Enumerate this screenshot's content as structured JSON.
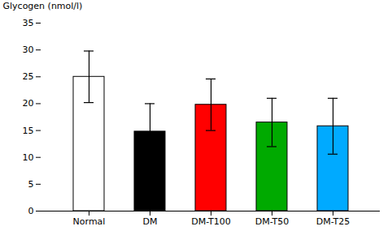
{
  "chart_data": {
    "type": "bar",
    "categories": [
      "Normal",
      "DM",
      "DM-T100",
      "DM-T50",
      "DM-T25"
    ],
    "values": [
      25.0,
      14.8,
      19.8,
      16.5,
      15.8
    ],
    "errors": [
      4.8,
      5.2,
      4.8,
      4.5,
      5.2
    ],
    "colors": [
      "#ffffff",
      "#000000",
      "#ff0000",
      "#00aa00",
      "#00aaff"
    ],
    "ylabel": "Glycogen (nmol/l)",
    "ylim": [
      0,
      35
    ],
    "yticks": [
      0,
      5,
      10,
      15,
      20,
      25,
      30,
      35
    ],
    "grid": false
  }
}
